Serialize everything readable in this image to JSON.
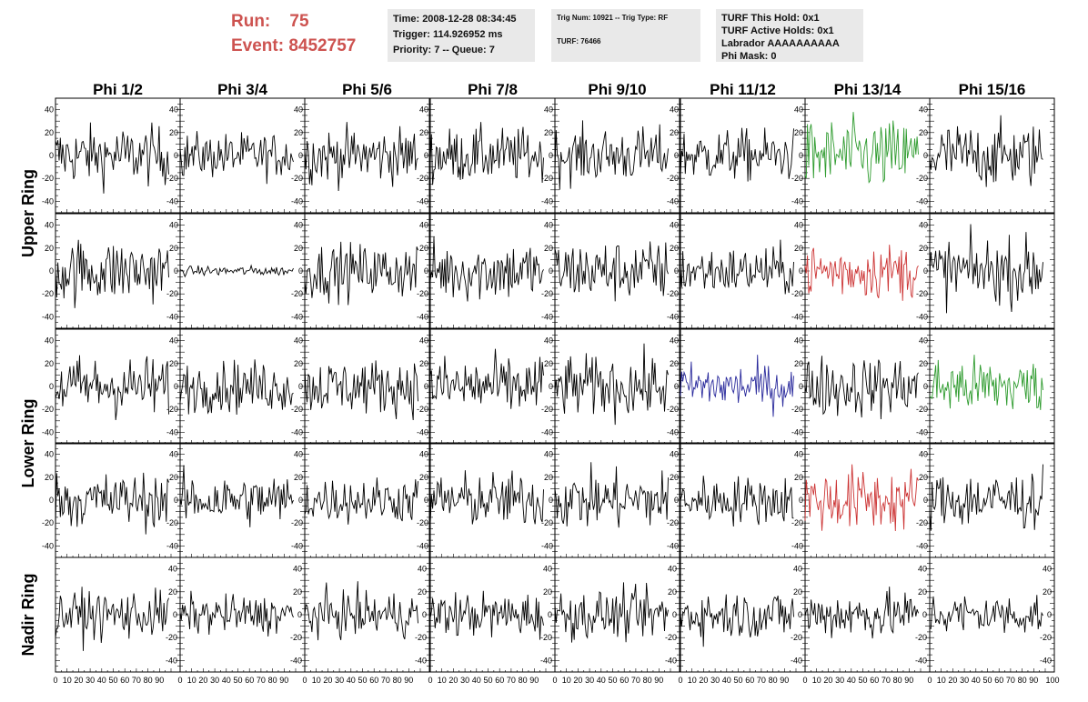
{
  "header": {
    "run_label": "Run:",
    "run_value": "75",
    "event_label": "Event:",
    "event_value": "8452757"
  },
  "info_box_1": {
    "time": "Time: 2008-12-28 08:34:45",
    "trigger": "Trigger: 114.926952 ms",
    "priority": "Priority: 7 -- Queue: 7"
  },
  "info_box_2": {
    "trig": "Trig Num: 10921 -- Trig Type: RF",
    "turf": "TURF: 76466"
  },
  "info_box_3": {
    "this_hold": "TURF This Hold: 0x1",
    "active_holds": "TURF Active Holds: 0x1",
    "labrador": "Labrador AAAAAAAAAA",
    "phi_mask": "Phi Mask: 0"
  },
  "colors": {
    "header_red": "#cd5350",
    "trace_default": "#000000",
    "trace_green": "#2e9b2e",
    "trace_red": "#cc3333",
    "trace_blue": "#2a2a9c"
  },
  "chart_data": {
    "type": "line",
    "columns": [
      "Phi 1/2",
      "Phi 3/4",
      "Phi 5/6",
      "Phi 7/8",
      "Phi 9/10",
      "Phi 11/12",
      "Phi 13/14",
      "Phi 15/16"
    ],
    "rows": [
      "Upper Ring",
      "Upper Ring",
      "Lower Ring",
      "Lower Ring",
      "Nadir Ring"
    ],
    "row_labels": [
      {
        "text": "Upper Ring",
        "rows": [
          0,
          1
        ]
      },
      {
        "text": "Lower Ring",
        "rows": [
          2,
          3
        ]
      },
      {
        "text": "Nadir Ring",
        "rows": [
          4
        ]
      }
    ],
    "xlim": [
      0,
      100
    ],
    "ylim": [
      -50,
      50
    ],
    "y_ticks": [
      -40,
      -20,
      0,
      20,
      40
    ],
    "x_tick_labels": [
      0,
      10,
      20,
      30,
      40,
      50,
      60,
      70,
      80,
      90,
      100
    ],
    "samples_per_trace": 95,
    "amplitude_per_row": [
      [
        18,
        14,
        17,
        17,
        17,
        16,
        22,
        20
      ],
      [
        20,
        3,
        17,
        19,
        19,
        15,
        17,
        20
      ],
      [
        19,
        16,
        17,
        19,
        19,
        14,
        19,
        18
      ],
      [
        17,
        16,
        14,
        17,
        18,
        15,
        20,
        18
      ],
      [
        15,
        12,
        14,
        14,
        15,
        15,
        15,
        13
      ]
    ],
    "trace_color_per_row": [
      [
        "black",
        "black",
        "black",
        "black",
        "black",
        "black",
        "green",
        "black"
      ],
      [
        "black",
        "black",
        "black",
        "black",
        "black",
        "black",
        "red",
        "black"
      ],
      [
        "black",
        "black",
        "black",
        "black",
        "black",
        "blue",
        "black",
        "green"
      ],
      [
        "black",
        "black",
        "black",
        "black",
        "black",
        "black",
        "red",
        "black"
      ],
      [
        "black",
        "black",
        "black",
        "black",
        "black",
        "black",
        "black",
        "black"
      ]
    ],
    "grid": false
  }
}
